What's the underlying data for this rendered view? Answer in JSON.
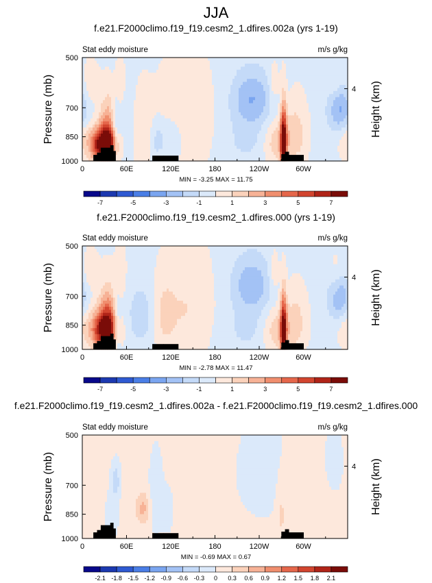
{
  "figure_title": "JJA",
  "chart_data": [
    {
      "type": "heatmap",
      "title": "f.e21.F2000climo.f19_f19.cesm2_1.dfires.002a (yrs 1-19)",
      "left_label": "Stat eddy moisture",
      "right_label": "m/s g/kg",
      "ylabel": "Pressure (mb)",
      "ylabel_right": "Height (km)",
      "x_ticks": [
        "0",
        "60E",
        "120E",
        "180",
        "120W",
        "60W"
      ],
      "y_ticks": [
        "500",
        "700",
        "850",
        "1000"
      ],
      "height_ticks": [
        "4"
      ],
      "min_max": "MIN = -3.25   MAX = 11.75",
      "colorbar_labels": [
        "-7",
        "-5",
        "-3",
        "-1",
        "1",
        "3",
        "5",
        "7"
      ],
      "levels": [
        -8,
        -7,
        -6,
        -5,
        -4,
        -3,
        -2,
        -1,
        0,
        1,
        2,
        3,
        4,
        5,
        6,
        7,
        8
      ],
      "colors": [
        "#08088a",
        "#1c39b0",
        "#2f5ad2",
        "#4a7ee6",
        "#7aa5f0",
        "#a3c2f5",
        "#c4daf8",
        "#dbe9fa",
        "#fde8dc",
        "#fbd2bb",
        "#f7b296",
        "#f08e6e",
        "#e5674b",
        "#d2452f",
        "#b02418",
        "#7a0c08"
      ],
      "blobs": [
        {
          "lon": 30,
          "p": 900,
          "sx": 12,
          "sp": 70,
          "a": 10
        },
        {
          "lon": 35,
          "p": 790,
          "sx": 8,
          "sp": 110,
          "a": 3
        },
        {
          "lon": 10,
          "p": 600,
          "sx": 8,
          "sp": 60,
          "a": 1.2
        },
        {
          "lon": 45,
          "p": 860,
          "sx": 4,
          "sp": 120,
          "a": -2.5
        },
        {
          "lon": 52,
          "p": 600,
          "sx": 5,
          "sp": 70,
          "a": 1.2
        },
        {
          "lon": 60,
          "p": 800,
          "sx": 10,
          "sp": 150,
          "a": -1.2
        },
        {
          "lon": 78,
          "p": 820,
          "sx": 12,
          "sp": 140,
          "a": 1.3
        },
        {
          "lon": 102,
          "p": 870,
          "sx": 8,
          "sp": 80,
          "a": -1.5
        },
        {
          "lon": 125,
          "p": 850,
          "sx": 10,
          "sp": 90,
          "a": -1.2
        },
        {
          "lon": 140,
          "p": 760,
          "sx": 25,
          "sp": 180,
          "a": 1.2
        },
        {
          "lon": 230,
          "p": 660,
          "sx": 20,
          "sp": 90,
          "a": -2.8
        },
        {
          "lon": 225,
          "p": 880,
          "sx": 25,
          "sp": 90,
          "a": -1
        },
        {
          "lon": 273,
          "p": 880,
          "sx": 3,
          "sp": 140,
          "a": 8
        },
        {
          "lon": 265,
          "p": 880,
          "sx": 14,
          "sp": 90,
          "a": 2.2
        },
        {
          "lon": 290,
          "p": 830,
          "sx": 10,
          "sp": 120,
          "a": 1.6
        },
        {
          "lon": 260,
          "p": 600,
          "sx": 5,
          "sp": 60,
          "a": 1.3
        },
        {
          "lon": 350,
          "p": 700,
          "sx": 12,
          "sp": 90,
          "a": -3.2
        },
        {
          "lon": 345,
          "p": 600,
          "sx": 8,
          "sp": 60,
          "a": 1.2
        },
        {
          "lon": 360,
          "p": 850,
          "sx": 10,
          "sp": 80,
          "a": 1.2
        }
      ],
      "base": -0.2,
      "topography": [
        [
          15,
          960
        ],
        [
          20,
          945
        ],
        [
          25,
          915
        ],
        [
          32,
          915
        ],
        [
          38,
          900
        ],
        [
          42,
          935
        ],
        [
          45,
          965
        ],
        [
          95,
          965
        ],
        [
          110,
          965
        ],
        [
          130,
          965
        ],
        [
          270,
          955
        ],
        [
          275,
          940
        ],
        [
          280,
          960
        ],
        [
          300,
          965
        ]
      ]
    },
    {
      "type": "heatmap",
      "title": "f.e21.F2000climo.f19_f19.cesm2_1.dfires.000 (yrs 1-19)",
      "left_label": "Stat eddy moisture",
      "right_label": "m/s g/kg",
      "ylabel": "Pressure (mb)",
      "ylabel_right": "Height (km)",
      "x_ticks": [
        "0",
        "60E",
        "120E",
        "180",
        "120W",
        "60W"
      ],
      "y_ticks": [
        "500",
        "700",
        "850",
        "1000"
      ],
      "height_ticks": [
        "4"
      ],
      "min_max": "MIN = -2.78   MAX = 11.47",
      "colorbar_labels": [
        "-7",
        "-5",
        "-3",
        "-1",
        "1",
        "3",
        "5",
        "7"
      ],
      "levels": [
        -8,
        -7,
        -6,
        -5,
        -4,
        -3,
        -2,
        -1,
        0,
        1,
        2,
        3,
        4,
        5,
        6,
        7,
        8
      ],
      "colors": [
        "#08088a",
        "#1c39b0",
        "#2f5ad2",
        "#4a7ee6",
        "#7aa5f0",
        "#a3c2f5",
        "#c4daf8",
        "#dbe9fa",
        "#fde8dc",
        "#fbd2bb",
        "#f7b296",
        "#f08e6e",
        "#e5674b",
        "#d2452f",
        "#b02418",
        "#7a0c08"
      ],
      "blobs": [
        {
          "lon": 30,
          "p": 880,
          "sx": 12,
          "sp": 80,
          "a": 8
        },
        {
          "lon": 35,
          "p": 790,
          "sx": 8,
          "sp": 110,
          "a": 3
        },
        {
          "lon": 10,
          "p": 600,
          "sx": 8,
          "sp": 60,
          "a": 1.2
        },
        {
          "lon": 47,
          "p": 860,
          "sx": 4,
          "sp": 120,
          "a": -2.2
        },
        {
          "lon": 52,
          "p": 600,
          "sx": 5,
          "sp": 70,
          "a": 1.2
        },
        {
          "lon": 80,
          "p": 800,
          "sx": 14,
          "sp": 120,
          "a": -1.5
        },
        {
          "lon": 110,
          "p": 800,
          "sx": 10,
          "sp": 120,
          "a": 1.2
        },
        {
          "lon": 140,
          "p": 760,
          "sx": 25,
          "sp": 180,
          "a": 1.2
        },
        {
          "lon": 230,
          "p": 650,
          "sx": 20,
          "sp": 90,
          "a": -2.6
        },
        {
          "lon": 225,
          "p": 880,
          "sx": 25,
          "sp": 90,
          "a": -1
        },
        {
          "lon": 273,
          "p": 880,
          "sx": 3,
          "sp": 140,
          "a": 7.5
        },
        {
          "lon": 265,
          "p": 880,
          "sx": 14,
          "sp": 90,
          "a": 2.2
        },
        {
          "lon": 290,
          "p": 830,
          "sx": 10,
          "sp": 120,
          "a": 1.5
        },
        {
          "lon": 260,
          "p": 600,
          "sx": 5,
          "sp": 60,
          "a": 1.3
        },
        {
          "lon": 350,
          "p": 700,
          "sx": 12,
          "sp": 90,
          "a": -2.8
        },
        {
          "lon": 345,
          "p": 600,
          "sx": 8,
          "sp": 60,
          "a": 1.2
        },
        {
          "lon": 360,
          "p": 850,
          "sx": 10,
          "sp": 80,
          "a": 1.2
        }
      ],
      "base": -0.2,
      "topography": [
        [
          15,
          960
        ],
        [
          20,
          945
        ],
        [
          25,
          915
        ],
        [
          32,
          915
        ],
        [
          38,
          900
        ],
        [
          42,
          935
        ],
        [
          45,
          965
        ],
        [
          95,
          965
        ],
        [
          110,
          965
        ],
        [
          130,
          965
        ],
        [
          270,
          955
        ],
        [
          275,
          940
        ],
        [
          280,
          960
        ],
        [
          300,
          965
        ]
      ]
    },
    {
      "type": "heatmap",
      "title": "f.e21.F2000climo.f19_f19.cesm2_1.dfires.002a - f.e21.F2000climo.f19_f19.cesm2_1.dfires.000",
      "left_label": "Stat eddy moisture",
      "right_label": "m/s g/kg",
      "ylabel": "Pressure (mb)",
      "ylabel_right": "Height (km)",
      "x_ticks": [
        "0",
        "60E",
        "120E",
        "180",
        "120W",
        "60W"
      ],
      "y_ticks": [
        "500",
        "700",
        "850",
        "1000"
      ],
      "height_ticks": [
        "4"
      ],
      "min_max": "MIN = -0.69   MAX = 0.67",
      "colorbar_labels": [
        "-2.1",
        "-1.8",
        "-1.5",
        "-1.2",
        "-0.9",
        "-0.6",
        "-0.3",
        "0",
        "0.3",
        "0.6",
        "0.9",
        "1.2",
        "1.5",
        "1.8",
        "2.1"
      ],
      "levels": [
        -2.4,
        -2.1,
        -1.8,
        -1.5,
        -1.2,
        -0.9,
        -0.6,
        -0.3,
        0,
        0.3,
        0.6,
        0.9,
        1.2,
        1.5,
        1.8,
        2.1,
        2.4
      ],
      "colors": [
        "#08088a",
        "#1c39b0",
        "#2f5ad2",
        "#4a7ee6",
        "#7aa5f0",
        "#a3c2f5",
        "#c4daf8",
        "#dbe9fa",
        "#fde8dc",
        "#fbd2bb",
        "#f7b296",
        "#f08e6e",
        "#e5674b",
        "#d2452f",
        "#b02418",
        "#7a0c08"
      ],
      "blobs": [
        {
          "lon": 45,
          "p": 680,
          "sx": 4,
          "sp": 50,
          "a": -0.6
        },
        {
          "lon": 40,
          "p": 860,
          "sx": 5,
          "sp": 80,
          "a": -0.35
        },
        {
          "lon": 82,
          "p": 820,
          "sx": 7,
          "sp": 60,
          "a": 0.65
        },
        {
          "lon": 100,
          "p": 750,
          "sx": 6,
          "sp": 120,
          "a": -0.3
        },
        {
          "lon": 115,
          "p": 830,
          "sx": 5,
          "sp": 80,
          "a": -0.2
        },
        {
          "lon": 250,
          "p": 640,
          "sx": 25,
          "sp": 140,
          "a": -0.2
        },
        {
          "lon": 270,
          "p": 840,
          "sx": 5,
          "sp": 140,
          "a": 0.3
        },
        {
          "lon": 300,
          "p": 700,
          "sx": 20,
          "sp": 150,
          "a": 0.15
        },
        {
          "lon": 20,
          "p": 620,
          "sx": 8,
          "sp": 80,
          "a": 0.2
        },
        {
          "lon": 340,
          "p": 600,
          "sx": 10,
          "sp": 100,
          "a": -0.15
        }
      ],
      "base": 0.05,
      "topography": [
        [
          15,
          960
        ],
        [
          20,
          945
        ],
        [
          25,
          915
        ],
        [
          32,
          915
        ],
        [
          38,
          900
        ],
        [
          42,
          935
        ],
        [
          45,
          965
        ],
        [
          95,
          965
        ],
        [
          110,
          965
        ],
        [
          130,
          965
        ],
        [
          270,
          955
        ],
        [
          275,
          940
        ],
        [
          280,
          960
        ],
        [
          300,
          965
        ]
      ]
    }
  ]
}
